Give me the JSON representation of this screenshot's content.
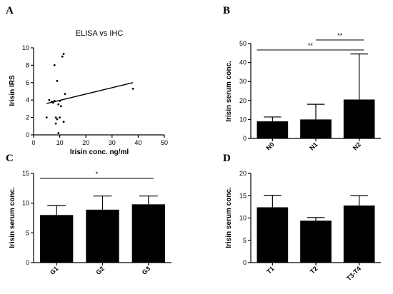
{
  "figure": {
    "panel_letters": [
      "A",
      "B",
      "C",
      "D"
    ]
  },
  "chart_data": [
    {
      "id": "A",
      "type": "scatter",
      "title": "ELISA vs IHC",
      "xlabel": "Irisin conc. ng/ml",
      "ylabel": "Irisin IRS",
      "xlim": [
        0,
        50
      ],
      "ylim": [
        0,
        10
      ],
      "xticks": [
        0,
        10,
        20,
        30,
        40,
        50
      ],
      "yticks": [
        0,
        2,
        4,
        6,
        8,
        10
      ],
      "points": [
        [
          5,
          2.0
        ],
        [
          6,
          4.0
        ],
        [
          7,
          3.8
        ],
        [
          7.5,
          3.7
        ],
        [
          8,
          8.0
        ],
        [
          8,
          3.9
        ],
        [
          8.5,
          2.0
        ],
        [
          8.5,
          1.3
        ],
        [
          9,
          6.2
        ],
        [
          9,
          1.8
        ],
        [
          9.5,
          3.5
        ],
        [
          9.5,
          0.2
        ],
        [
          10,
          3.9
        ],
        [
          10,
          2.0
        ],
        [
          10.5,
          3.3
        ],
        [
          11,
          9.0
        ],
        [
          11.5,
          9.3
        ],
        [
          11.5,
          1.5
        ],
        [
          12,
          4.7
        ],
        [
          38,
          5.3
        ]
      ],
      "trend": [
        [
          5,
          3.6
        ],
        [
          38,
          6.0
        ]
      ]
    },
    {
      "id": "B",
      "type": "bar",
      "categories": [
        "N0",
        "N1",
        "N2"
      ],
      "values": [
        9.0,
        10.0,
        20.5
      ],
      "errors": [
        2.3,
        8.0,
        24.0
      ],
      "ylabel": "Irisin serum conc.",
      "ylim": [
        0,
        50
      ],
      "yticks": [
        0,
        10,
        20,
        30,
        40,
        50
      ],
      "significance": [
        {
          "from": 0,
          "to": 2,
          "label": "**"
        },
        {
          "from": 1,
          "to": 2,
          "label": "**"
        }
      ]
    },
    {
      "id": "C",
      "type": "bar",
      "categories": [
        "G1",
        "G2",
        "G3"
      ],
      "values": [
        8.0,
        8.9,
        9.8
      ],
      "errors": [
        1.6,
        2.3,
        1.4
      ],
      "ylabel": "Irisin serum conc.",
      "ylim": [
        0,
        15
      ],
      "yticks": [
        0,
        5,
        10,
        15
      ],
      "significance": [
        {
          "from": 0,
          "to": 2,
          "label": "*"
        }
      ]
    },
    {
      "id": "D",
      "type": "bar",
      "categories": [
        "T1",
        "T2",
        "T3-T4"
      ],
      "values": [
        12.4,
        9.4,
        12.8
      ],
      "errors": [
        2.7,
        0.7,
        2.2
      ],
      "ylabel": "Irisin serum conc.",
      "ylim": [
        0,
        20
      ],
      "yticks": [
        0,
        5,
        10,
        15,
        20
      ],
      "significance": []
    }
  ]
}
